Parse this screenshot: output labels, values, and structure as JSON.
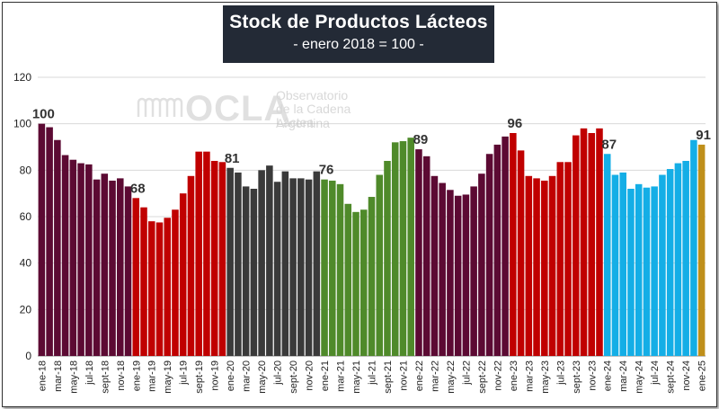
{
  "title": "Stock de Productos Lácteos",
  "subtitle": "- enero 2018 = 100 -",
  "watermark": {
    "brand": "OCLA",
    "line1": "Observatorio",
    "line2": "de la Cadena Láctea",
    "line3": "Argentina"
  },
  "chart_data": {
    "type": "bar",
    "ylim": [
      0,
      120
    ],
    "yticks": [
      0,
      20,
      40,
      60,
      80,
      100,
      120
    ],
    "grid": true,
    "legend": "none",
    "xlabel": "",
    "ylabel": "",
    "tick_labels": [
      "ene-18",
      "mar-18",
      "may-18",
      "jul-18",
      "sept-18",
      "nov-18",
      "ene-19",
      "mar-19",
      "may-19",
      "jul-19",
      "sept-19",
      "nov-19",
      "ene-20",
      "mar-20",
      "may-20",
      "jul-20",
      "sept-20",
      "nov-20",
      "ene-21",
      "mar-21",
      "may-21",
      "jul-21",
      "sept-21",
      "nov-21",
      "ene-22",
      "mar-22",
      "may-22",
      "jul-22",
      "sept-22",
      "nov-22",
      "ene-23",
      "mar-23",
      "may-23",
      "jul-23",
      "sept-23",
      "nov-23",
      "ene-24",
      "mar-24",
      "may-24",
      "jul-24",
      "sept-24",
      "nov-24",
      "ene-25"
    ],
    "series": [
      {
        "year": "2018",
        "color": "#5c0a33",
        "values": [
          100,
          98.5,
          93,
          86.5,
          84.5,
          83,
          82.5,
          76,
          78.5,
          75.5,
          76.5,
          73
        ]
      },
      {
        "year": "2019",
        "color": "#c00000",
        "values": [
          68,
          64,
          58,
          57.5,
          59.5,
          63,
          70,
          77.5,
          88,
          88,
          84,
          83.5
        ]
      },
      {
        "year": "2020",
        "color": "#3a3a3a",
        "values": [
          81,
          79,
          73,
          72,
          80,
          82,
          75,
          79.5,
          76.5,
          76.5,
          76,
          79.5
        ]
      },
      {
        "year": "2021",
        "color": "#4f8a2a",
        "values": [
          76,
          75.5,
          74,
          65.5,
          62,
          63,
          68.5,
          78,
          84,
          92,
          92.5,
          94
        ]
      },
      {
        "year": "2022",
        "color": "#5c0a33",
        "values": [
          89,
          86,
          77.5,
          74.5,
          71.5,
          69,
          69.5,
          73,
          78.5,
          87,
          91,
          94.5
        ]
      },
      {
        "year": "2023",
        "color": "#c00000",
        "values": [
          96,
          88.5,
          77.5,
          76.5,
          75.5,
          77.5,
          83.5,
          83.5,
          95,
          98,
          96,
          98
        ]
      },
      {
        "year": "2024",
        "color": "#14aee6",
        "values": [
          87,
          78,
          79,
          72,
          74,
          72.5,
          73,
          78,
          80.5,
          83,
          84,
          93
        ]
      },
      {
        "year": "2025",
        "color": "#bf8f1a",
        "values": [
          91
        ]
      }
    ],
    "data_labels": [
      {
        "index": 0,
        "text": "100"
      },
      {
        "index": 12,
        "text": "68"
      },
      {
        "index": 24,
        "text": "81"
      },
      {
        "index": 36,
        "text": "76"
      },
      {
        "index": 48,
        "text": "89"
      },
      {
        "index": 60,
        "text": "96"
      },
      {
        "index": 72,
        "text": "87"
      },
      {
        "index": 84,
        "text": "91"
      }
    ]
  }
}
